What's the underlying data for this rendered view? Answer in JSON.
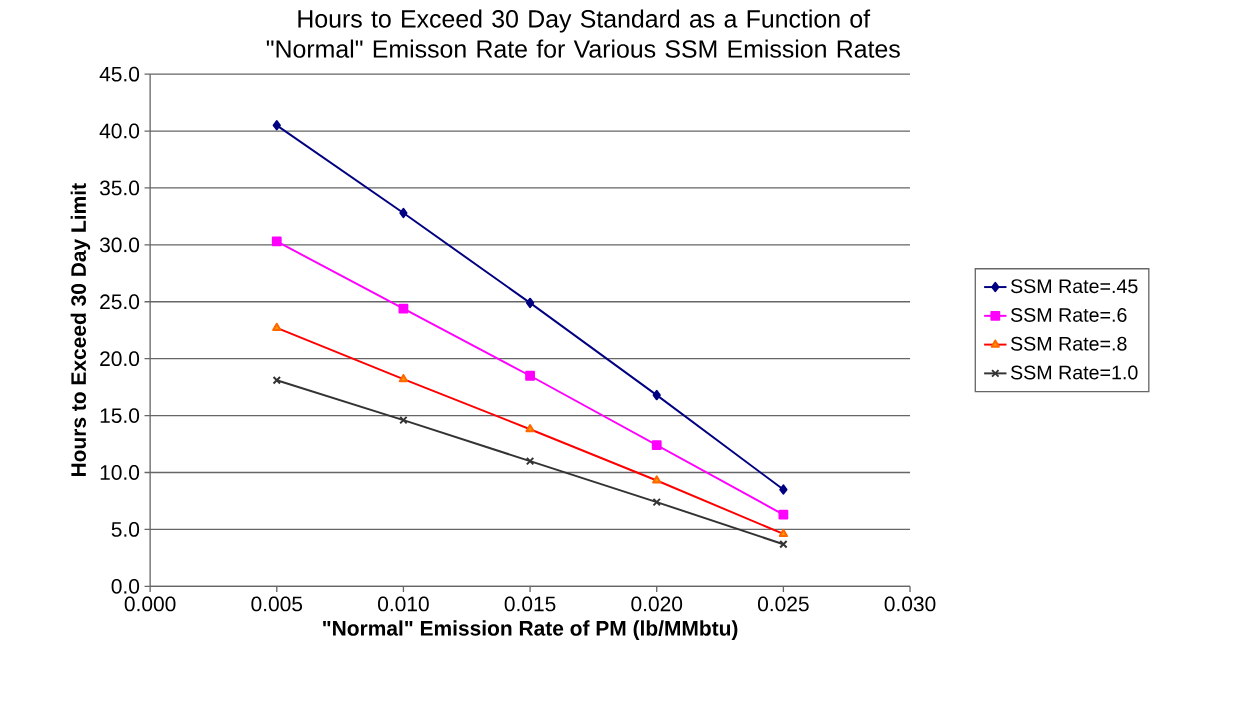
{
  "chart_data": {
    "type": "line",
    "title": "Hours to Exceed 30 Day Standard as a Function of \"Normal\" Emisson Rate for Various SSM Emission Rates",
    "xlabel": "\"Normal\" Emission Rate of PM (lb/MMbtu)",
    "ylabel": "Hours to Exceed 30 Day Limit",
    "x": [
      0.005,
      0.01,
      0.015,
      0.02,
      0.025
    ],
    "series": [
      {
        "name": "SSM Rate=.45",
        "color": "#000080",
        "marker": "diamond",
        "values": [
          40.5,
          32.8,
          24.9,
          16.8,
          8.5
        ]
      },
      {
        "name": "SSM Rate=.6",
        "color": "#ff00ff",
        "marker": "square",
        "values": [
          30.3,
          24.4,
          18.5,
          12.4,
          6.3
        ]
      },
      {
        "name": "SSM Rate=.8",
        "color": "#ff0000",
        "marker": "triangle",
        "values": [
          22.7,
          18.2,
          13.8,
          9.3,
          4.6
        ]
      },
      {
        "name": "SSM Rate=1.0",
        "color": "#333333",
        "marker": "cross",
        "values": [
          18.1,
          14.6,
          11.0,
          7.4,
          3.7
        ]
      }
    ],
    "xlim": [
      0,
      0.03
    ],
    "xticks": [
      {
        "value": 0,
        "label": "0.000"
      },
      {
        "value": 0.005,
        "label": "0.005"
      },
      {
        "value": 0.01,
        "label": "0.010"
      },
      {
        "value": 0.015,
        "label": "0.015"
      },
      {
        "value": 0.02,
        "label": "0.020"
      },
      {
        "value": 0.025,
        "label": "0.025"
      },
      {
        "value": 0.03,
        "label": "0.030"
      }
    ],
    "ylim": [
      0,
      45
    ],
    "yticks": [
      {
        "value": 0,
        "label": "0.0"
      },
      {
        "value": 5,
        "label": "5.0"
      },
      {
        "value": 10,
        "label": "10.0"
      },
      {
        "value": 15,
        "label": "15.0"
      },
      {
        "value": 20,
        "label": "20.0"
      },
      {
        "value": 25,
        "label": "25.0"
      },
      {
        "value": 30,
        "label": "30.0"
      },
      {
        "value": 35,
        "label": "35.0"
      },
      {
        "value": 40,
        "label": "40.0"
      },
      {
        "value": 45,
        "label": "45.0"
      }
    ],
    "grid": "y",
    "legend": "right",
    "line_style": "solid"
  }
}
